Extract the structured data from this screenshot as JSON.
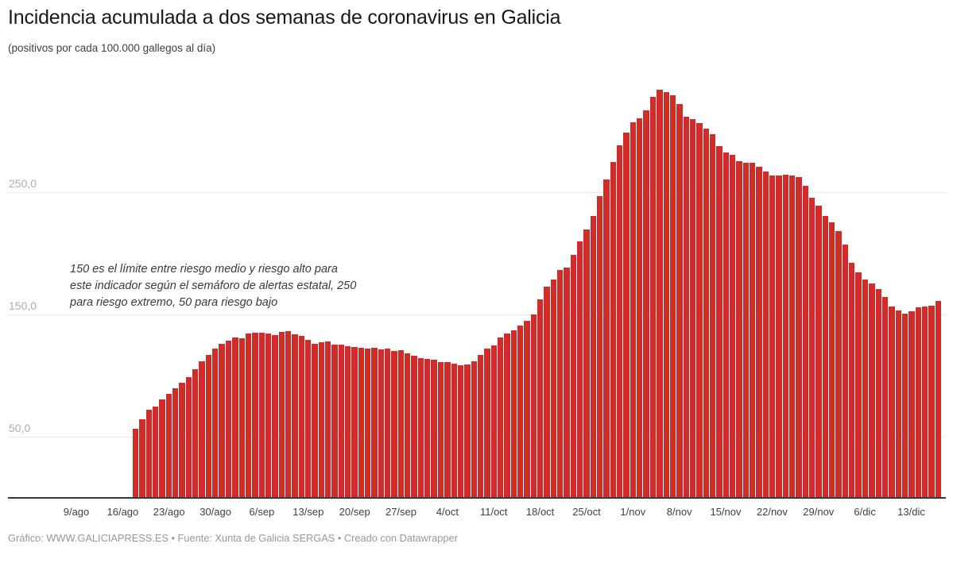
{
  "header": {
    "title": "Incidencia acumulada a dos semanas de coronavirus en Galicia",
    "subtitle": "(positivos por cada 100.000 gallegos al día)"
  },
  "annotation": {
    "lines": [
      "150 es el límite entre riesgo medio y riesgo alto para",
      "este indicador según el semáforo de alertas estatal, 250",
      "para riesgo extremo, 50 para riesgo bajo"
    ]
  },
  "footer": {
    "text": "Gráfico: WWW.GALICIAPRESS.ES • Fuente: Xunta de Galicia SERGAS • Creado con Datawrapper"
  },
  "colors": {
    "bar": "#d12b2a",
    "grid": "#e8e8e8",
    "axis_line": "#383838",
    "y_label": "#adadad",
    "x_label": "#3f3f3f",
    "title": "#191919",
    "subtitle": "#3f3f3f",
    "annotation": "#3a3a3a",
    "footer": "#989898"
  },
  "chart_data": {
    "type": "bar",
    "title": "Incidencia acumulada a dos semanas de coronavirus en Galicia",
    "subtitle": "(positivos por cada 100.000 gallegos al día)",
    "xlabel": "",
    "ylabel": "positivos por cada 100.000 gallegos al día",
    "ylim": [
      0,
      340
    ],
    "grid": true,
    "legend": "none",
    "annotation": "150 es el límite entre riesgo medio y riesgo alto para este indicador según el semáforo de alertas estatal, 250 para riesgo extremo, 50 para riesgo bajo",
    "y_ticks": [
      {
        "value": 50,
        "label": "50,0"
      },
      {
        "value": 150,
        "label": "150,0"
      },
      {
        "value": 250,
        "label": "250,0"
      }
    ],
    "x_tick_labels": [
      "9/ago",
      "16/ago",
      "23/ago",
      "30/ago",
      "6/sep",
      "13/sep",
      "20/sep",
      "27/sep",
      "4/oct",
      "11/oct",
      "18/oct",
      "25/oct",
      "1/nov",
      "8/nov",
      "15/nov",
      "22/nov",
      "29/nov",
      "6/dic",
      "13/dic"
    ],
    "x": [
      "2020-08-18",
      "2020-08-19",
      "2020-08-20",
      "2020-08-21",
      "2020-08-22",
      "2020-08-23",
      "2020-08-24",
      "2020-08-25",
      "2020-08-26",
      "2020-08-27",
      "2020-08-28",
      "2020-08-29",
      "2020-08-30",
      "2020-08-31",
      "2020-09-01",
      "2020-09-02",
      "2020-09-03",
      "2020-09-04",
      "2020-09-05",
      "2020-09-06",
      "2020-09-07",
      "2020-09-08",
      "2020-09-09",
      "2020-09-10",
      "2020-09-11",
      "2020-09-12",
      "2020-09-13",
      "2020-09-14",
      "2020-09-15",
      "2020-09-16",
      "2020-09-17",
      "2020-09-18",
      "2020-09-19",
      "2020-09-20",
      "2020-09-21",
      "2020-09-22",
      "2020-09-23",
      "2020-09-24",
      "2020-09-25",
      "2020-09-26",
      "2020-09-27",
      "2020-09-28",
      "2020-09-29",
      "2020-09-30",
      "2020-10-01",
      "2020-10-02",
      "2020-10-03",
      "2020-10-04",
      "2020-10-05",
      "2020-10-06",
      "2020-10-07",
      "2020-10-08",
      "2020-10-09",
      "2020-10-10",
      "2020-10-11",
      "2020-10-12",
      "2020-10-13",
      "2020-10-14",
      "2020-10-15",
      "2020-10-16",
      "2020-10-17",
      "2020-10-18",
      "2020-10-19",
      "2020-10-20",
      "2020-10-21",
      "2020-10-22",
      "2020-10-23",
      "2020-10-24",
      "2020-10-25",
      "2020-10-26",
      "2020-10-27",
      "2020-10-28",
      "2020-10-29",
      "2020-10-30",
      "2020-10-31",
      "2020-11-01",
      "2020-11-02",
      "2020-11-03",
      "2020-11-04",
      "2020-11-05",
      "2020-11-06",
      "2020-11-07",
      "2020-11-08",
      "2020-11-09",
      "2020-11-10",
      "2020-11-11",
      "2020-11-12",
      "2020-11-13",
      "2020-11-14",
      "2020-11-15",
      "2020-11-16",
      "2020-11-17",
      "2020-11-18",
      "2020-11-19",
      "2020-11-20",
      "2020-11-21",
      "2020-11-22",
      "2020-11-23",
      "2020-11-24",
      "2020-11-25",
      "2020-11-26",
      "2020-11-27",
      "2020-11-28",
      "2020-11-29",
      "2020-11-30",
      "2020-12-01",
      "2020-12-02",
      "2020-12-03",
      "2020-12-04",
      "2020-12-05",
      "2020-12-06",
      "2020-12-07",
      "2020-12-08",
      "2020-12-09",
      "2020-12-10",
      "2020-12-11",
      "2020-12-12",
      "2020-12-13",
      "2020-12-14",
      "2020-12-15",
      "2020-12-16",
      "2020-12-17"
    ],
    "values": [
      56.1,
      63.7,
      71.2,
      74.0,
      79.8,
      84.5,
      88.8,
      93.4,
      98.1,
      104.5,
      111.0,
      116.3,
      121.7,
      125.2,
      127.7,
      130.3,
      129.7,
      133.5,
      134.2,
      134.2,
      133.5,
      132.3,
      134.8,
      135.5,
      132.9,
      131.6,
      128.4,
      125.2,
      126.5,
      127.1,
      124.5,
      124.5,
      123.2,
      122.6,
      121.9,
      121.3,
      121.9,
      120.6,
      121.3,
      119.4,
      120.0,
      117.4,
      115.5,
      113.5,
      112.9,
      112.3,
      110.3,
      110.3,
      109.2,
      107.7,
      108.4,
      111.0,
      116.3,
      121.7,
      124.3,
      130.8,
      133.5,
      136.3,
      140.0,
      144.3,
      149.7,
      162.0,
      172.0,
      178.0,
      186.0,
      188.0,
      198.0,
      209.0,
      219.0,
      230.0,
      246.0,
      260.0,
      274.0,
      288.0,
      298.0,
      306.6,
      309.9,
      316.3,
      327.1,
      332.9,
      331.4,
      328.6,
      321.7,
      310.9,
      308.8,
      305.6,
      301.3,
      297.0,
      287.3,
      281.9,
      279.8,
      274.4,
      273.4,
      273.4,
      270.1,
      266.3,
      263.2,
      263.2,
      263.7,
      263.2,
      261.9,
      254.6,
      244.7,
      238.3,
      229.7,
      224.5,
      217.4,
      206.6,
      191.6,
      184.1,
      178.1,
      175.0,
      170.1,
      163.7,
      155.7,
      152.9,
      150.1,
      151.8,
      155.0,
      155.7,
      156.6,
      160.5
    ]
  }
}
